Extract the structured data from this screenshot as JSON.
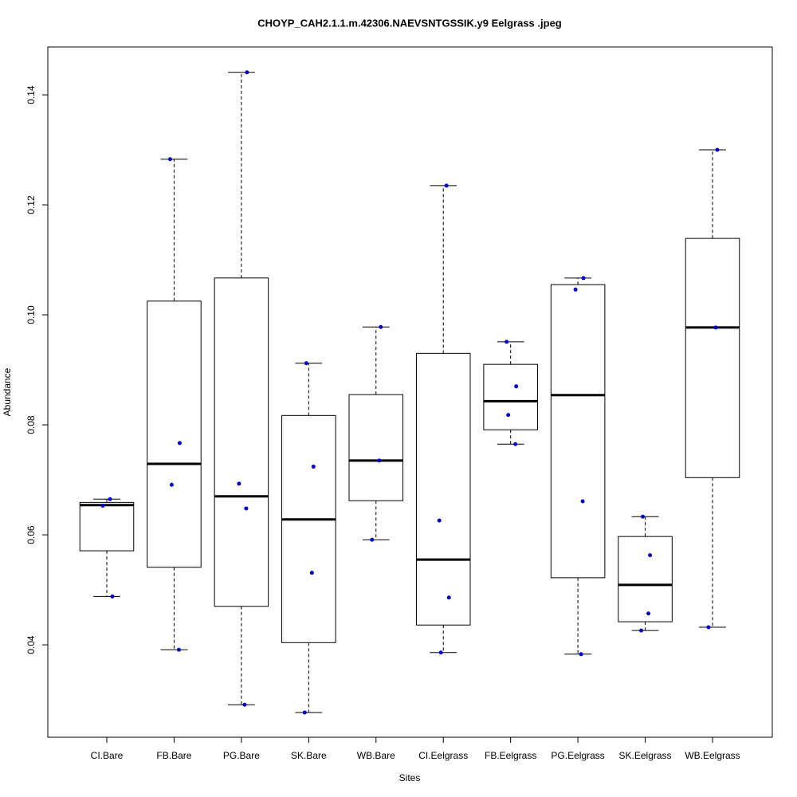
{
  "chart_data": {
    "type": "boxplot",
    "title": "CHOYP_CAH2.1.1.m.42306.NAEVSNTGSSIK.y9 Eelgrass .jpeg",
    "x_label": "Sites",
    "y_label": "Abundance",
    "categories": [
      "CI.Bare",
      "FB.Bare",
      "PG.Bare",
      "SK.Bare",
      "WB.Bare",
      "CI.Eelgrass",
      "FB.Eelgrass",
      "PG.Eelgrass",
      "SK.Eelgrass",
      "WB.Eelgrass"
    ],
    "boxes": [
      {
        "whislo": 0.0488,
        "q1": 0.0571,
        "med": 0.0654,
        "q3": 0.0659,
        "whishi": 0.0665,
        "points": [
          0.0665,
          0.0653,
          0.0488
        ]
      },
      {
        "whislo": 0.0391,
        "q1": 0.0541,
        "med": 0.0729,
        "q3": 0.1025,
        "whishi": 0.1283,
        "points": [
          0.1283,
          0.0767,
          0.0691,
          0.0391
        ]
      },
      {
        "whislo": 0.0291,
        "q1": 0.047,
        "med": 0.067,
        "q3": 0.1067,
        "whishi": 0.1441,
        "points": [
          0.1441,
          0.0693,
          0.0648,
          0.0291
        ]
      },
      {
        "whislo": 0.0277,
        "q1": 0.0404,
        "med": 0.0628,
        "q3": 0.0817,
        "whishi": 0.0912,
        "points": [
          0.0912,
          0.0724,
          0.0531,
          0.0277
        ]
      },
      {
        "whislo": 0.0591,
        "q1": 0.0662,
        "med": 0.0735,
        "q3": 0.0855,
        "whishi": 0.0978,
        "points": [
          0.0978,
          0.0735,
          0.0591
        ]
      },
      {
        "whislo": 0.0386,
        "q1": 0.0436,
        "med": 0.0555,
        "q3": 0.093,
        "whishi": 0.1235,
        "points": [
          0.1235,
          0.0626,
          0.0486,
          0.0386
        ]
      },
      {
        "whislo": 0.0765,
        "q1": 0.0791,
        "med": 0.0843,
        "q3": 0.091,
        "whishi": 0.0951,
        "points": [
          0.0951,
          0.087,
          0.0818,
          0.0765
        ]
      },
      {
        "whislo": 0.0383,
        "q1": 0.0522,
        "med": 0.0854,
        "q3": 0.1055,
        "whishi": 0.1067,
        "points": [
          0.1067,
          0.1046,
          0.0661,
          0.0383
        ]
      },
      {
        "whislo": 0.0426,
        "q1": 0.0442,
        "med": 0.0509,
        "q3": 0.0597,
        "whishi": 0.0633,
        "points": [
          0.0633,
          0.0563,
          0.0457,
          0.0426
        ]
      },
      {
        "whislo": 0.0432,
        "q1": 0.0704,
        "med": 0.0977,
        "q3": 0.1139,
        "whishi": 0.13,
        "points": [
          0.13,
          0.0977,
          0.0432
        ]
      }
    ],
    "point_color": "#0000cd",
    "ylim": [
      0.0232,
      0.1487
    ],
    "yticks": [
      0.04,
      0.06,
      0.08,
      {
        "value": 0.1,
        "label": "0.10"
      },
      0.12,
      0.14
    ]
  }
}
